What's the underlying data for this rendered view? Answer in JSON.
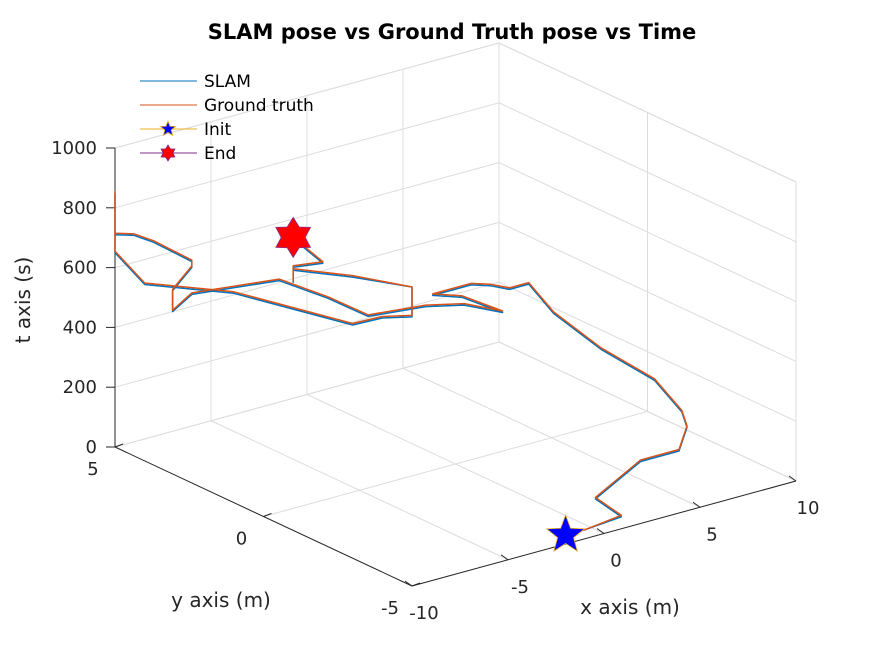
{
  "chart_data": {
    "type": "line",
    "dimension": "3d",
    "title": "SLAM pose vs Ground Truth pose vs Time",
    "xlabel": "x axis (m)",
    "ylabel": "y axis (m)",
    "zlabel": "t axis (s)",
    "xlim": [
      -10,
      10
    ],
    "ylim": [
      -5,
      5
    ],
    "zlim": [
      0,
      1000
    ],
    "x_ticks": [
      "-10",
      "-5",
      "0",
      "5",
      "10"
    ],
    "y_ticks": [
      "-5",
      "0",
      "5"
    ],
    "z_ticks": [
      "0",
      "200",
      "400",
      "600",
      "800",
      "1000"
    ],
    "grid": true,
    "legend_position": "top-left",
    "series": [
      {
        "name": "SLAM",
        "color": "#0072bd",
        "points": [
          [
            -2.1,
            -5.0,
            30
          ],
          [
            -1.0,
            -5.0,
            30
          ],
          [
            0.9,
            -5.0,
            40
          ],
          [
            1.1,
            -4.0,
            50
          ],
          [
            5.0,
            -3.0,
            60
          ],
          [
            7.0,
            -3.0,
            60
          ],
          [
            8.5,
            -2.3,
            80
          ],
          [
            9.0,
            -1.8,
            100
          ],
          [
            9.9,
            -0.3,
            120
          ],
          [
            9.9,
            1.5,
            140
          ],
          [
            9.6,
            2.9,
            200
          ],
          [
            10.0,
            4.0,
            240
          ],
          [
            9.0,
            4.0,
            240
          ],
          [
            8.0,
            4.0,
            270
          ],
          [
            7.0,
            4.0,
            290
          ],
          [
            5.0,
            4.0,
            290
          ],
          [
            5.0,
            3.0,
            330
          ],
          [
            4.0,
            1.0,
            390
          ],
          [
            2.0,
            1.0,
            450
          ],
          [
            0.0,
            1.0,
            480
          ],
          [
            -3.0,
            1.0,
            500
          ],
          [
            -2.0,
            3.0,
            450
          ],
          [
            -3.0,
            4.0,
            480
          ],
          [
            -6.0,
            5.0,
            440
          ],
          [
            -7.0,
            5.0,
            400
          ],
          [
            -7.0,
            5.0,
            470
          ],
          [
            -6.0,
            5.0,
            530
          ],
          [
            -6.0,
            5.0,
            550
          ],
          [
            -7.0,
            5.0,
            600
          ],
          [
            -8.0,
            5.0,
            650
          ],
          [
            -9.0,
            5.0,
            690
          ],
          [
            -10.0,
            5.0,
            710
          ],
          [
            -10.0,
            5.0,
            800
          ],
          [
            -10.0,
            5.0,
            850
          ],
          [
            -10.0,
            5.0,
            650
          ],
          [
            -10.0,
            4.0,
            590
          ],
          [
            -10.0,
            1.0,
            700
          ],
          [
            -10.0,
            -3.0,
            780
          ],
          [
            -10.0,
            -4.0,
            850
          ],
          [
            -10.0,
            -5.0,
            900
          ],
          [
            -10.0,
            -5.0,
            980
          ],
          [
            -10.0,
            -5.0,
            1000
          ],
          [
            -10.0,
            -3.0,
            940
          ],
          [
            -10.0,
            -1.0,
            870
          ],
          [
            -10.0,
            -1.0,
            830
          ],
          [
            -10.0,
            -1.0,
            880
          ],
          [
            -10.0,
            -2.0,
            940
          ],
          [
            -10.0,
            -1.0,
            975
          ]
        ]
      },
      {
        "name": "Ground truth",
        "color": "#d95319",
        "points": [
          [
            -2.0,
            -5.0,
            30
          ],
          [
            -1.0,
            -5.0,
            30
          ],
          [
            0.9,
            -5.0,
            45
          ],
          [
            1.1,
            -4.0,
            55
          ],
          [
            5.0,
            -3.0,
            65
          ],
          [
            7.0,
            -3.0,
            65
          ],
          [
            8.5,
            -2.3,
            85
          ],
          [
            9.0,
            -1.8,
            105
          ],
          [
            9.9,
            -0.3,
            125
          ],
          [
            9.9,
            1.5,
            145
          ],
          [
            9.6,
            2.9,
            205
          ],
          [
            10.0,
            4.0,
            245
          ],
          [
            9.0,
            4.0,
            245
          ],
          [
            8.0,
            4.0,
            275
          ],
          [
            7.0,
            4.0,
            295
          ],
          [
            5.0,
            4.0,
            295
          ],
          [
            5.0,
            3.0,
            335
          ],
          [
            4.0,
            1.0,
            395
          ],
          [
            2.0,
            1.0,
            455
          ],
          [
            0.0,
            1.0,
            485
          ],
          [
            -3.0,
            1.0,
            505
          ],
          [
            -2.0,
            3.0,
            455
          ],
          [
            -3.0,
            4.0,
            485
          ],
          [
            -6.0,
            5.0,
            445
          ],
          [
            -7.0,
            5.0,
            405
          ],
          [
            -7.0,
            5.0,
            475
          ],
          [
            -6.0,
            5.0,
            535
          ],
          [
            -6.0,
            5.0,
            555
          ],
          [
            -7.0,
            5.0,
            605
          ],
          [
            -8.0,
            5.0,
            655
          ],
          [
            -9.0,
            5.0,
            695
          ],
          [
            -10.0,
            5.0,
            715
          ],
          [
            -10.0,
            5.0,
            805
          ],
          [
            -10.0,
            5.0,
            855
          ],
          [
            -10.0,
            5.0,
            655
          ],
          [
            -10.0,
            4.0,
            595
          ],
          [
            -10.0,
            1.0,
            705
          ],
          [
            -10.0,
            -3.0,
            785
          ],
          [
            -10.0,
            -4.0,
            855
          ],
          [
            -10.0,
            -5.0,
            905
          ],
          [
            -10.0,
            -5.0,
            985
          ],
          [
            -10.0,
            -5.0,
            1000
          ],
          [
            -10.0,
            -3.0,
            945
          ],
          [
            -10.0,
            -1.0,
            875
          ],
          [
            -10.0,
            -1.0,
            835
          ],
          [
            -10.0,
            -1.0,
            885
          ],
          [
            -10.0,
            -2.0,
            945
          ],
          [
            -10.0,
            -1.0,
            980
          ]
        ]
      }
    ],
    "markers": [
      {
        "name": "Init",
        "shape": "pentagram",
        "color": "#0000ff",
        "edge_color": "#edb120",
        "point": [
          -2.0,
          -5.0,
          30
        ]
      },
      {
        "name": "End",
        "shape": "hexagram",
        "color": "#ff0000",
        "edge_color": "#7e2f8e",
        "point": [
          -10.0,
          -1.0,
          980
        ]
      }
    ],
    "legend": [
      {
        "label": "SLAM",
        "color": "#0072bd",
        "symbol": "line"
      },
      {
        "label": "Ground truth",
        "color": "#d95319",
        "symbol": "line"
      },
      {
        "label": "Init",
        "color": "#0000ff",
        "line_color": "#edb120",
        "symbol": "pentagram"
      },
      {
        "label": "End",
        "color": "#ff0000",
        "line_color": "#7e2f8e",
        "symbol": "hexagram"
      }
    ]
  }
}
